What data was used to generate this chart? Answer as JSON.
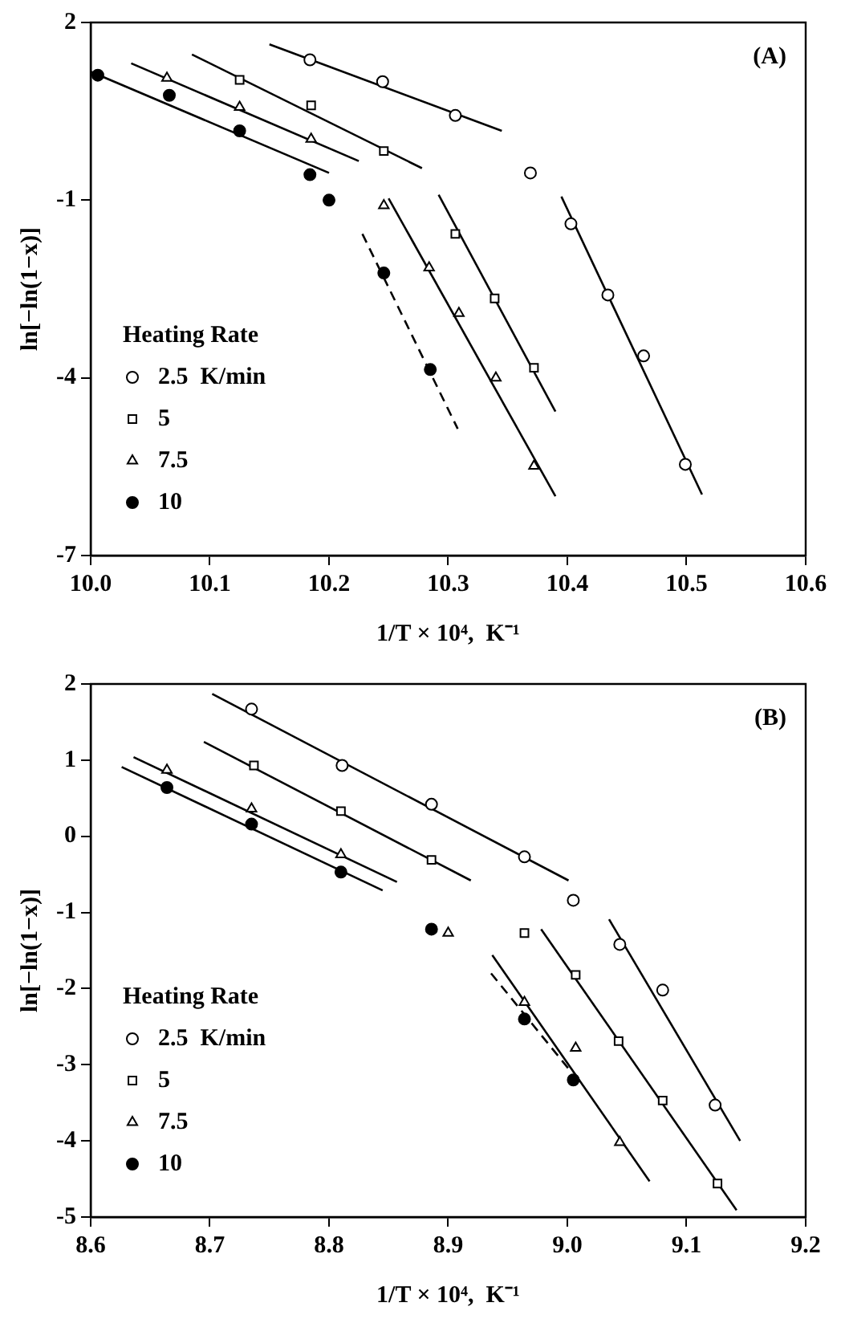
{
  "chart_data": [
    {
      "type": "scatter",
      "xlabel": "1/T × 10⁴,  K⁻¹",
      "ylabel": "ln[−ln(1−x)]",
      "legend_title": "Heating Rate",
      "legend": "bottom left",
      "grid": false,
      "annotations": [
        "(A)"
      ],
      "xlim": [
        10.0,
        10.6
      ],
      "xticks": [
        {
          "value": 10.0,
          "label": "10.0"
        },
        10.1,
        10.2,
        10.3,
        10.4,
        10.5,
        10.6
      ],
      "ylim": [
        -7,
        2
      ],
      "yticks": [
        2,
        -1,
        -4,
        -7
      ],
      "series": [
        {
          "name": "2.5  K/min",
          "color": "#000000",
          "marker": "circle",
          "x": [
            10.184,
            10.245,
            10.306,
            10.369,
            10.403,
            10.434,
            10.464,
            10.499
          ],
          "values": [
            1.37,
            1.0,
            0.43,
            -0.54,
            -1.4,
            -2.6,
            -3.63,
            -5.46
          ]
        },
        {
          "name": "5",
          "color": "#000000",
          "marker": "square",
          "x": [
            10.125,
            10.185,
            10.246,
            10.306,
            10.339,
            10.372
          ],
          "values": [
            1.03,
            0.6,
            -0.17,
            -1.57,
            -2.66,
            -3.83
          ]
        },
        {
          "name": "7.5",
          "color": "#000000",
          "marker": "triangle",
          "x": [
            10.064,
            10.125,
            10.185,
            10.246,
            10.284,
            10.309,
            10.34,
            10.372
          ],
          "values": [
            1.06,
            0.57,
            0.03,
            -1.09,
            -2.14,
            -2.91,
            -4.0,
            -5.49
          ]
        },
        {
          "name": "10",
          "color": "#000000",
          "marker": "circle",
          "x": [
            10.006,
            10.066,
            10.125,
            10.184,
            10.2,
            10.246,
            10.285
          ],
          "values": [
            1.11,
            0.77,
            0.17,
            -0.57,
            -1.0,
            -2.23,
            -3.86
          ]
        },
        {
          "type": "line",
          "color": "#000000",
          "line_style": "solid",
          "x": [
            10.15,
            10.345
          ],
          "values": [
            1.63,
            0.17
          ]
        },
        {
          "type": "line",
          "color": "#000000",
          "line_style": "solid",
          "x": [
            10.395,
            10.513
          ],
          "values": [
            -0.94,
            -5.97
          ]
        },
        {
          "type": "line",
          "color": "#000000",
          "line_style": "solid",
          "x": [
            10.085,
            10.278
          ],
          "values": [
            1.46,
            -0.46
          ]
        },
        {
          "type": "line",
          "color": "#000000",
          "line_style": "solid",
          "x": [
            10.292,
            10.39
          ],
          "values": [
            -0.91,
            -4.57
          ]
        },
        {
          "type": "line",
          "color": "#000000",
          "line_style": "solid",
          "x": [
            10.034,
            10.225
          ],
          "values": [
            1.31,
            -0.34
          ]
        },
        {
          "type": "line",
          "color": "#000000",
          "line_style": "solid",
          "x": [
            10.25,
            10.39
          ],
          "values": [
            -0.97,
            -6.0
          ]
        },
        {
          "type": "line",
          "color": "#000000",
          "line_style": "solid",
          "x": [
            10.0,
            10.2
          ],
          "values": [
            1.17,
            -0.54
          ]
        },
        {
          "type": "line",
          "color": "#000000",
          "line_style": "dashed",
          "x": [
            10.228,
            10.308
          ],
          "values": [
            -1.57,
            -4.86
          ]
        }
      ]
    },
    {
      "type": "scatter",
      "xlabel": "1/T × 10⁴,  K⁻¹",
      "ylabel": "ln[−ln(1−x)]",
      "legend_title": "Heating Rate",
      "legend": "bottom left",
      "grid": false,
      "annotations": [
        "(B)"
      ],
      "xlim": [
        8.6,
        9.2
      ],
      "xticks": [
        8.6,
        8.7,
        8.8,
        8.9,
        {
          "value": 9.0,
          "label": "9.0"
        },
        9.1,
        9.2
      ],
      "ylim": [
        -5,
        2
      ],
      "yticks": [
        2,
        1,
        0,
        -1,
        -2,
        -3,
        -4,
        -5
      ],
      "series": [
        {
          "name": "2.5  K/min",
          "color": "#000000",
          "marker": "circle",
          "x": [
            8.735,
            8.811,
            8.886,
            8.964,
            9.005,
            9.044,
            9.08,
            9.124
          ],
          "values": [
            1.67,
            0.93,
            0.42,
            -0.27,
            -0.84,
            -1.42,
            -2.02,
            -3.53
          ]
        },
        {
          "name": "5",
          "color": "#000000",
          "marker": "square",
          "x": [
            8.737,
            8.81,
            8.886,
            8.964,
            9.007,
            9.043,
            9.08,
            9.126
          ],
          "values": [
            0.93,
            0.33,
            -0.31,
            -1.27,
            -1.82,
            -2.69,
            -3.47,
            -4.56
          ]
        },
        {
          "name": "7.5",
          "color": "#000000",
          "marker": "triangle",
          "x": [
            8.664,
            8.735,
            8.81,
            8.9,
            8.964,
            9.007,
            9.044
          ],
          "values": [
            0.87,
            0.36,
            -0.24,
            -1.27,
            -2.18,
            -2.78,
            -4.02
          ]
        },
        {
          "name": "10",
          "color": "#000000",
          "marker": "circle",
          "x": [
            8.664,
            8.735,
            8.81,
            8.886,
            8.964,
            9.005
          ],
          "values": [
            0.64,
            0.16,
            -0.47,
            -1.22,
            -2.4,
            -3.2
          ]
        },
        {
          "type": "line",
          "color": "#000000",
          "line_style": "solid",
          "x": [
            8.702,
            9.001
          ],
          "values": [
            1.87,
            -0.58
          ]
        },
        {
          "type": "line",
          "color": "#000000",
          "line_style": "solid",
          "x": [
            9.035,
            9.145
          ],
          "values": [
            -1.09,
            -4.0
          ]
        },
        {
          "type": "line",
          "color": "#000000",
          "line_style": "solid",
          "x": [
            8.695,
            8.919
          ],
          "values": [
            1.24,
            -0.58
          ]
        },
        {
          "type": "line",
          "color": "#000000",
          "line_style": "solid",
          "x": [
            8.978,
            9.142
          ],
          "values": [
            -1.22,
            -4.91
          ]
        },
        {
          "type": "line",
          "color": "#000000",
          "line_style": "solid",
          "x": [
            8.636,
            8.857
          ],
          "values": [
            1.04,
            -0.6
          ]
        },
        {
          "type": "line",
          "color": "#000000",
          "line_style": "solid",
          "x": [
            8.937,
            9.069
          ],
          "values": [
            -1.56,
            -4.53
          ]
        },
        {
          "type": "line",
          "color": "#000000",
          "line_style": "solid",
          "x": [
            8.626,
            8.845
          ],
          "values": [
            0.91,
            -0.71
          ]
        },
        {
          "type": "line",
          "color": "#000000",
          "line_style": "dashed",
          "x": [
            8.936,
            9.004
          ],
          "values": [
            -1.8,
            -3.11
          ]
        }
      ]
    }
  ]
}
